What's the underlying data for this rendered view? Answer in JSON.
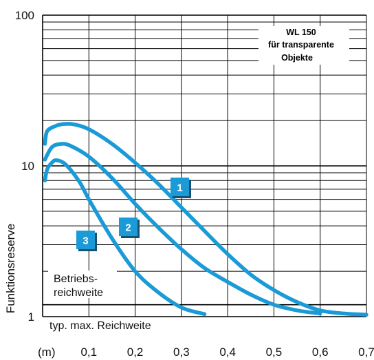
{
  "chart_data": {
    "type": "line",
    "ylabel": "Funktionsreserve",
    "x_unit_label": "(m)",
    "x_scale": "linear",
    "y_scale": "log",
    "xlim": [
      0,
      0.7
    ],
    "ylim": [
      1,
      100
    ],
    "x_ticks": [
      {
        "value": 0.1,
        "label": "0,1"
      },
      {
        "value": 0.2,
        "label": "0,2"
      },
      {
        "value": 0.3,
        "label": "0,3"
      },
      {
        "value": 0.4,
        "label": "0,4"
      },
      {
        "value": 0.5,
        "label": "0,5"
      },
      {
        "value": 0.6,
        "label": "0,6"
      },
      {
        "value": 0.7,
        "label": "0,7"
      }
    ],
    "y_ticks": [
      {
        "value": 1,
        "label": "1"
      },
      {
        "value": 10,
        "label": "10"
      },
      {
        "value": 100,
        "label": "100"
      }
    ],
    "grid": true,
    "legend": {
      "lines": [
        "WL 150",
        "für transparente",
        "Objekte"
      ],
      "position": "top-right"
    },
    "annotations": {
      "operating_range": [
        "Betriebs-",
        "reichweite"
      ],
      "max_range": "typ. max. Reichweite",
      "operating_threshold_value": 1.2
    },
    "series": [
      {
        "label": "1",
        "color": "#1a9bd7",
        "x": [
          0.005,
          0.01,
          0.03,
          0.05,
          0.07,
          0.1,
          0.15,
          0.2,
          0.25,
          0.3,
          0.35,
          0.4,
          0.45,
          0.5,
          0.55,
          0.6,
          0.65,
          0.7
        ],
        "y": [
          14,
          17,
          18.5,
          19,
          18.8,
          17.5,
          14,
          10.5,
          7.6,
          5.3,
          3.7,
          2.6,
          1.9,
          1.5,
          1.25,
          1.1,
          1.05,
          1.03
        ]
      },
      {
        "label": "2",
        "color": "#1a9bd7",
        "x": [
          0.005,
          0.02,
          0.04,
          0.06,
          0.1,
          0.15,
          0.2,
          0.25,
          0.3,
          0.35,
          0.4,
          0.45,
          0.5,
          0.55,
          0.6
        ],
        "y": [
          11,
          13.3,
          14,
          13.6,
          11.5,
          8.3,
          5.6,
          3.9,
          2.8,
          2.1,
          1.7,
          1.4,
          1.2,
          1.1,
          1.05
        ]
      },
      {
        "label": "3",
        "color": "#1a9bd7",
        "x": [
          0.005,
          0.01,
          0.02,
          0.03,
          0.05,
          0.08,
          0.1,
          0.15,
          0.2,
          0.25,
          0.3,
          0.35
        ],
        "y": [
          8,
          9.5,
          10.5,
          10.9,
          10.2,
          7.8,
          6,
          3.3,
          2,
          1.45,
          1.15,
          1.04
        ]
      }
    ]
  }
}
